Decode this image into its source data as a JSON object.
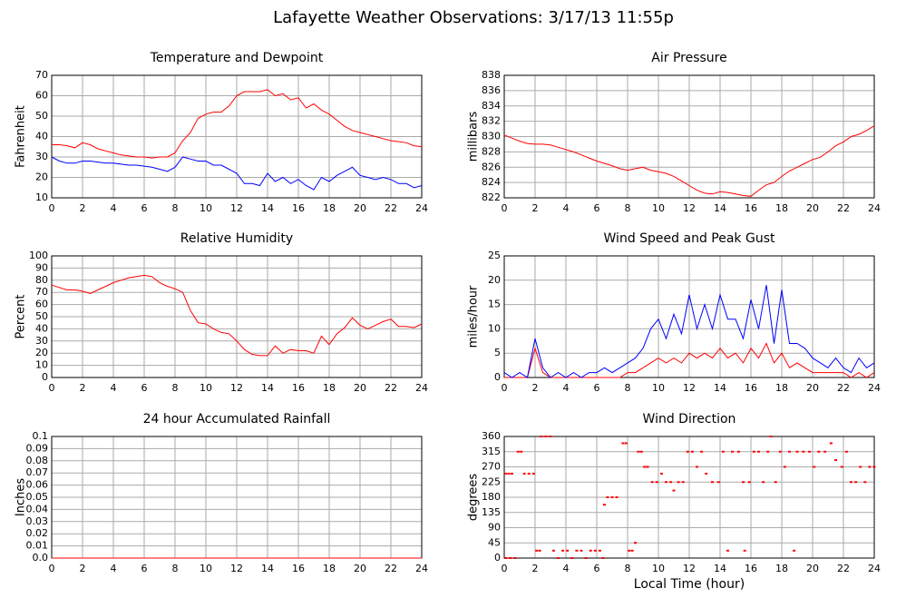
{
  "title": "Lafayette Weather Observations: 3/17/13 11:55p",
  "chart_data": [
    {
      "type": "line",
      "title": "Temperature and Dewpoint",
      "ylabel": "Fahrenheit",
      "x": [
        0,
        0.5,
        1,
        1.5,
        2,
        2.5,
        3,
        3.5,
        4,
        4.5,
        5,
        5.5,
        6,
        6.5,
        7,
        7.5,
        8,
        8.5,
        9,
        9.5,
        10,
        10.5,
        11,
        11.5,
        12,
        12.5,
        13,
        13.5,
        14,
        14.5,
        15,
        15.5,
        16,
        16.5,
        17,
        17.5,
        18,
        18.5,
        19,
        19.5,
        20,
        20.5,
        21,
        21.5,
        22,
        22.5,
        23,
        23.5,
        24
      ],
      "series": [
        {
          "color": "#ff0000",
          "values": [
            36,
            36,
            35.5,
            34.5,
            37,
            36,
            34,
            33,
            32,
            31,
            30.5,
            30,
            30,
            29.5,
            30,
            30,
            32,
            38,
            42,
            49,
            51,
            52,
            52,
            55,
            60,
            62,
            62,
            62,
            63,
            60,
            61,
            58,
            59,
            54,
            56,
            53,
            51,
            48,
            45,
            43,
            42,
            41,
            40,
            39,
            38,
            37.5,
            37,
            35.5,
            35
          ]
        },
        {
          "color": "#0000ff",
          "values": [
            30,
            28,
            27,
            27,
            28,
            28,
            27.5,
            27,
            27,
            26.5,
            26,
            26,
            25.5,
            25,
            24,
            23,
            25,
            30,
            29,
            28,
            28,
            26,
            26,
            24,
            22,
            17,
            17,
            16,
            22,
            18,
            20,
            17,
            19,
            16,
            14,
            20,
            18,
            21,
            23,
            25,
            21,
            20,
            19,
            20,
            19,
            17,
            17,
            15,
            16
          ]
        }
      ],
      "xlim": [
        0,
        24
      ],
      "xticks": [
        0,
        2,
        4,
        6,
        8,
        10,
        12,
        14,
        16,
        18,
        20,
        22,
        24
      ],
      "ylim": [
        10,
        70
      ],
      "yticks": [
        10,
        20,
        30,
        40,
        50,
        60,
        70
      ],
      "grid": true
    },
    {
      "type": "line",
      "title": "Air Pressure",
      "ylabel": "millibars",
      "x": [
        0,
        0.5,
        1,
        1.5,
        2,
        2.5,
        3,
        3.5,
        4,
        4.5,
        5,
        5.5,
        6,
        6.5,
        7,
        7.5,
        8,
        8.5,
        9,
        9.5,
        10,
        10.5,
        11,
        11.5,
        12,
        12.5,
        13,
        13.5,
        14,
        14.5,
        15,
        15.5,
        16,
        16.5,
        17,
        17.5,
        18,
        18.5,
        19,
        19.5,
        20,
        20.5,
        21,
        21.5,
        22,
        22.5,
        23,
        23.5,
        24
      ],
      "series": [
        {
          "color": "#ff0000",
          "values": [
            830.2,
            829.8,
            829.4,
            829.1,
            829,
            829,
            828.9,
            828.6,
            828.3,
            828,
            827.6,
            827.2,
            826.8,
            826.5,
            826.2,
            825.8,
            825.6,
            825.8,
            826,
            825.6,
            825.4,
            825.2,
            824.8,
            824.2,
            823.6,
            823,
            822.6,
            822.5,
            822.8,
            822.7,
            822.5,
            822.3,
            822.2,
            823,
            823.7,
            824,
            824.8,
            825.5,
            826,
            826.5,
            827,
            827.3,
            828,
            828.8,
            829.3,
            830,
            830.3,
            830.8,
            831.4
          ]
        }
      ],
      "xlim": [
        0,
        24
      ],
      "xticks": [
        0,
        2,
        4,
        6,
        8,
        10,
        12,
        14,
        16,
        18,
        20,
        22,
        24
      ],
      "ylim": [
        822,
        838
      ],
      "yticks": [
        822,
        824,
        826,
        828,
        830,
        832,
        834,
        836,
        838
      ],
      "grid": true
    },
    {
      "type": "line",
      "title": "Relative Humidity",
      "ylabel": "Percent",
      "x": [
        0,
        0.5,
        1,
        1.5,
        2,
        2.5,
        3,
        3.5,
        4,
        4.5,
        5,
        5.5,
        6,
        6.5,
        7,
        7.5,
        8,
        8.5,
        9,
        9.5,
        10,
        10.5,
        11,
        11.5,
        12,
        12.5,
        13,
        13.5,
        14,
        14.5,
        15,
        15.5,
        16,
        16.5,
        17,
        17.5,
        18,
        18.5,
        19,
        19.5,
        20,
        20.5,
        21,
        21.5,
        22,
        22.5,
        23,
        23.5,
        24
      ],
      "series": [
        {
          "color": "#ff0000",
          "values": [
            76,
            74,
            72,
            72,
            71,
            69,
            72,
            75,
            78,
            80,
            82,
            83,
            84,
            83,
            78,
            75,
            73,
            70,
            55,
            45,
            44,
            40,
            37,
            36,
            30,
            23,
            19,
            18,
            18,
            26,
            20,
            23,
            22,
            22,
            20,
            34,
            27,
            36,
            41,
            49,
            43,
            40,
            43,
            46,
            48,
            42,
            42,
            41,
            44
          ]
        }
      ],
      "xlim": [
        0,
        24
      ],
      "xticks": [
        0,
        2,
        4,
        6,
        8,
        10,
        12,
        14,
        16,
        18,
        20,
        22,
        24
      ],
      "ylim": [
        0,
        100
      ],
      "yticks": [
        0,
        10,
        20,
        30,
        40,
        50,
        60,
        70,
        80,
        90,
        100
      ],
      "grid": true
    },
    {
      "type": "line",
      "title": "Wind Speed and Peak Gust",
      "ylabel": "miles/hour",
      "x": [
        0,
        0.5,
        1,
        1.5,
        2,
        2.5,
        3,
        3.5,
        4,
        4.5,
        5,
        5.5,
        6,
        6.5,
        7,
        7.5,
        8,
        8.5,
        9,
        9.5,
        10,
        10.5,
        11,
        11.5,
        12,
        12.5,
        13,
        13.5,
        14,
        14.5,
        15,
        15.5,
        16,
        16.5,
        17,
        17.5,
        18,
        18.5,
        19,
        19.5,
        20,
        20.5,
        21,
        21.5,
        22,
        22.5,
        23,
        23.5,
        24
      ],
      "series": [
        {
          "color": "#ff0000",
          "values": [
            0,
            0,
            0,
            0,
            6,
            1,
            0,
            0,
            0,
            0,
            0,
            0,
            0,
            0,
            0,
            0,
            1,
            1,
            2,
            3,
            4,
            3,
            4,
            3,
            5,
            4,
            5,
            4,
            6,
            4,
            5,
            3,
            6,
            4,
            7,
            3,
            5,
            2,
            3,
            2,
            1,
            1,
            1,
            1,
            1,
            0,
            1,
            0,
            1
          ]
        },
        {
          "color": "#0000ff",
          "values": [
            1,
            0,
            1,
            0,
            8,
            2,
            0,
            1,
            0,
            1,
            0,
            1,
            1,
            2,
            1,
            2,
            3,
            4,
            6,
            10,
            12,
            8,
            13,
            9,
            17,
            10,
            15,
            10,
            17,
            12,
            12,
            8,
            16,
            10,
            19,
            7,
            18,
            7,
            7,
            6,
            4,
            3,
            2,
            4,
            2,
            1,
            4,
            2,
            3
          ]
        }
      ],
      "xlim": [
        0,
        24
      ],
      "xticks": [
        0,
        2,
        4,
        6,
        8,
        10,
        12,
        14,
        16,
        18,
        20,
        22,
        24
      ],
      "ylim": [
        0,
        25
      ],
      "yticks": [
        0,
        5,
        10,
        15,
        20,
        25
      ],
      "grid": true
    },
    {
      "type": "line",
      "title": "24 hour Accumulated Rainfall",
      "ylabel": "Inches",
      "x": [
        0,
        6,
        12,
        18,
        24
      ],
      "series": [
        {
          "color": "#ff0000",
          "values": [
            0,
            0,
            0,
            0,
            0
          ]
        }
      ],
      "xlim": [
        0,
        24
      ],
      "xticks": [
        0,
        2,
        4,
        6,
        8,
        10,
        12,
        14,
        16,
        18,
        20,
        22,
        24
      ],
      "ylim": [
        0,
        0.1
      ],
      "yticks": [
        {
          "value": 0,
          "label": "0.0"
        },
        0.01,
        0.02,
        0.03,
        0.04,
        0.05,
        0.06,
        0.07,
        0.08,
        0.09,
        0.1
      ],
      "grid": true
    },
    {
      "type": "scatter",
      "title": "Wind Direction",
      "ylabel": "degrees",
      "xlabel": "Local Time (hour)",
      "color": "#ff0000",
      "x": [
        0.1,
        0.3,
        0.5,
        0.1,
        0.4,
        0.7,
        0.9,
        1.1,
        1.3,
        1.6,
        1.9,
        2.1,
        2.3,
        2.4,
        2.7,
        3.0,
        3.2,
        3.5,
        3.8,
        4.1,
        4.4,
        4.7,
        5.0,
        5.3,
        5.6,
        5.9,
        6.2,
        6.4,
        6.5,
        6.7,
        7.0,
        7.3,
        7.7,
        7.9,
        8.1,
        8.3,
        8.5,
        8.7,
        8.9,
        9.1,
        9.3,
        9.6,
        9.9,
        10.2,
        10.5,
        10.8,
        11.0,
        11.3,
        11.6,
        11.9,
        12.2,
        12.5,
        12.8,
        13.1,
        13.5,
        13.9,
        14.2,
        14.5,
        14.8,
        15.2,
        15.5,
        15.6,
        15.9,
        16.2,
        16.5,
        16.8,
        17.1,
        17.3,
        17.6,
        17.9,
        18.2,
        18.5,
        18.8,
        19.0,
        19.4,
        19.8,
        20.1,
        20.4,
        20.8,
        21.2,
        21.5,
        21.9,
        22.2,
        22.5,
        22.8,
        23.1,
        23.4,
        23.7,
        24.0
      ],
      "values": [
        250,
        250,
        250,
        0,
        0,
        0,
        315,
        315,
        250,
        250,
        250,
        22,
        22,
        360,
        360,
        360,
        22,
        0,
        22,
        22,
        0,
        22,
        22,
        0,
        22,
        22,
        22,
        0,
        158,
        180,
        180,
        180,
        340,
        340,
        22,
        22,
        45,
        315,
        315,
        270,
        270,
        225,
        225,
        250,
        225,
        225,
        200,
        225,
        225,
        315,
        315,
        270,
        315,
        250,
        225,
        225,
        315,
        22,
        315,
        315,
        225,
        22,
        225,
        315,
        315,
        225,
        315,
        360,
        225,
        315,
        270,
        315,
        22,
        315,
        315,
        315,
        270,
        315,
        315,
        340,
        290,
        270,
        315,
        225,
        225,
        270,
        225,
        270,
        270
      ],
      "xlim": [
        0,
        24
      ],
      "xticks": [
        0,
        2,
        4,
        6,
        8,
        10,
        12,
        14,
        16,
        18,
        20,
        22,
        24
      ],
      "ylim": [
        0,
        360
      ],
      "yticks": [
        0,
        45,
        90,
        135,
        180,
        225,
        270,
        315,
        360
      ],
      "grid": true
    }
  ]
}
